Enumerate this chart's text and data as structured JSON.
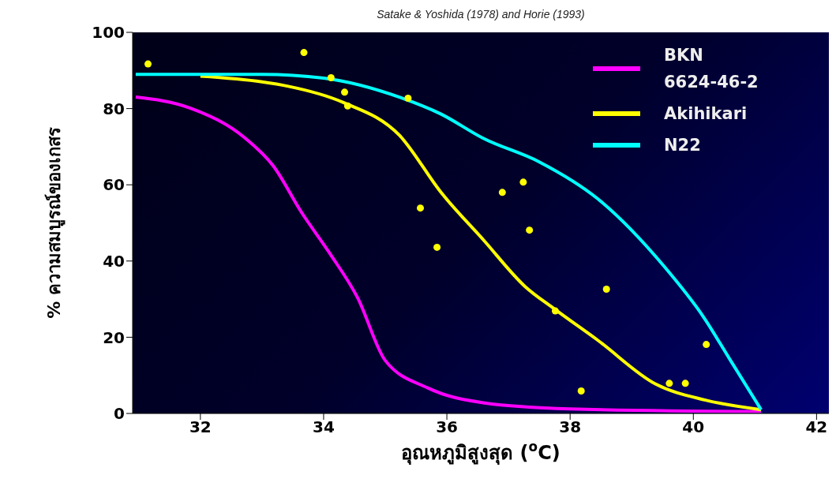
{
  "chart_data": {
    "type": "line",
    "title": "Satake & Yoshida (1978) and Horie (1993)",
    "xlabel": "อุณหภูมิสูงสุด ($^{o}$C)",
    "ylabel": "% ความสมบูรณ์ของเกสร",
    "xlim": [
      30.9,
      42.2
    ],
    "xticks": [
      32,
      34,
      36,
      38,
      40,
      42
    ],
    "ylim": [
      0,
      100
    ],
    "yticks": [
      0,
      20,
      40,
      60,
      80,
      100
    ],
    "grid": false,
    "legend": "top right",
    "marker": "none",
    "line_style": "solid",
    "series": [
      {
        "name": "BKN 6624-46-2",
        "color": "#ff00ff",
        "x": [
          30.95,
          31.82,
          32.73,
          33.18,
          33.64,
          34.1,
          34.55,
          35.0,
          35.69,
          36.59,
          38.0,
          41.1
        ],
        "values": [
          83,
          80.2,
          72.2,
          65,
          52.8,
          42,
          30.4,
          13.9,
          6.7,
          2.8,
          1.2,
          0.5
        ]
      },
      {
        "name": "Akihikari",
        "color": "#ffff00",
        "x": [
          32,
          33,
          33.41,
          34.32,
          35.23,
          35.91,
          36.59,
          37.27,
          37.73,
          38.45,
          39.39,
          40.2,
          41.1
        ],
        "values": [
          88.5,
          87,
          85.9,
          81.6,
          73,
          57.9,
          45.6,
          33.3,
          27.6,
          19.2,
          7.7,
          3.5,
          1
        ]
      },
      {
        "name": "N22",
        "color": "#00ffff",
        "x": [
          30.95,
          32,
          33,
          34,
          35.23,
          35.9,
          36.59,
          37.5,
          38.45,
          39.52,
          40.17,
          40.6,
          41.1
        ],
        "values": [
          89,
          89,
          89,
          88,
          83,
          78.6,
          72.2,
          66,
          56.3,
          38.7,
          25.2,
          14,
          1
        ]
      },
      {
        "type": "scatter",
        "marker": "circle",
        "color": "#ffff00",
        "x": [
          31.15,
          33.68,
          34.12,
          34.34,
          34.39,
          35.37,
          35.57,
          35.84,
          36.9,
          37.24,
          37.34,
          38.59,
          37.76,
          38.18,
          40.21,
          39.61,
          39.87
        ],
        "values": [
          91.7,
          94.7,
          88.1,
          84.3,
          80.7,
          82.7,
          53.9,
          43.6,
          58.0,
          60.7,
          48.1,
          32.6,
          26.9,
          5.9,
          18.1,
          7.9,
          7.9
        ]
      }
    ]
  }
}
